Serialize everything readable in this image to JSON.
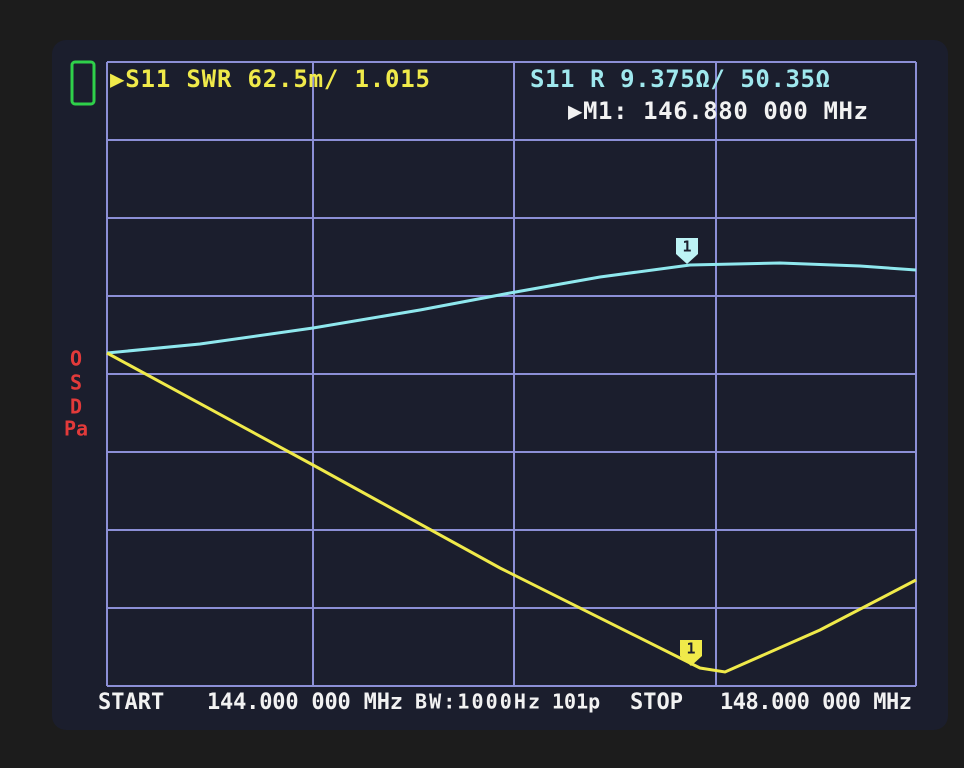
{
  "header": {
    "trace1": "▶S11 SWR 62.5m/ 1.015",
    "trace2": "S11 R 9.375Ω/ 50.35Ω",
    "marker": "▶M1: 146.880 000 MHz"
  },
  "side_status": [
    "O",
    "S",
    "D",
    "Pa"
  ],
  "markers": [
    {
      "label": "1"
    },
    {
      "label": "1"
    }
  ],
  "footer": {
    "start_label": "START",
    "start": "144.000 000 MHz",
    "bandwidth": "BW:1000Hz",
    "points": "101p",
    "stop_label": "STOP",
    "stop": "148.000 000 MHz"
  }
}
